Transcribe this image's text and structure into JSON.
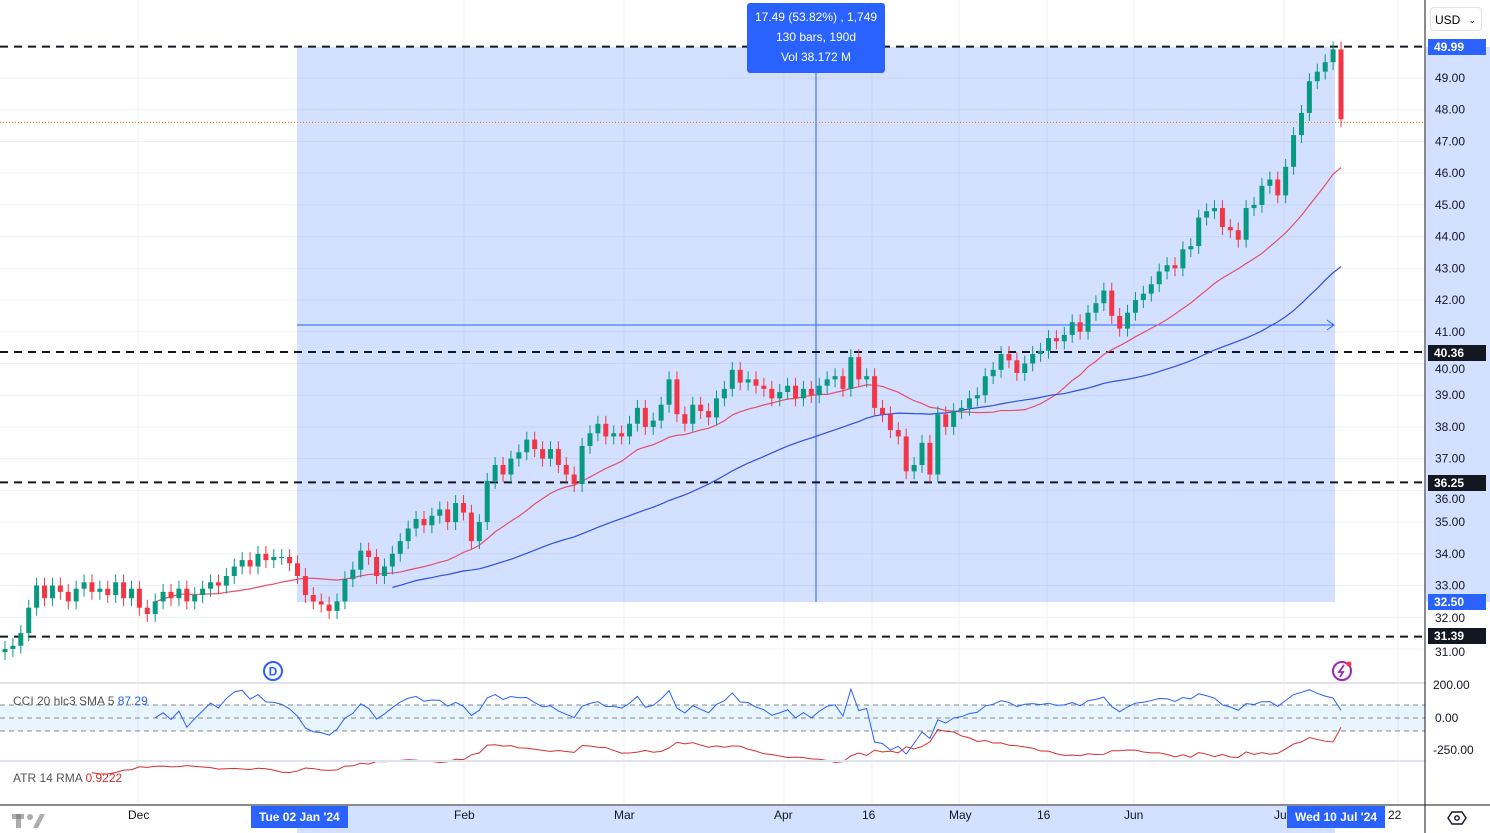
{
  "currency_select": {
    "value": "USD"
  },
  "measure_tooltip": {
    "line1": "17.49 (53.82%) , 1,749",
    "line2": "130 bars, 190d",
    "line3": "Vol 38.172 M"
  },
  "price_badges": {
    "top": "49.99",
    "mid": "40.36",
    "low": "36.25",
    "measure_low": "32.50",
    "bottom": "31.39"
  },
  "time_badges": {
    "start": "Tue 02 Jan '24",
    "end": "Wed 10 Jul '24"
  },
  "indicators": {
    "cci_label": "CCI 20 hlc3 SMA 5",
    "cci_value": "87.29",
    "atr_label": "ATR 14 RMA",
    "atr_value": "0.9222",
    "cci_ticks": [
      "200.00",
      "0.00",
      "-250.00"
    ]
  },
  "colors": {
    "up": "#089981",
    "down": "#f23645",
    "accent": "#2962ff",
    "ma_fast": "#e5506a",
    "ma_slow": "#2f4fe0",
    "cci": "#2962ff",
    "atr": "#d32f2f",
    "current_price_line": "#f57c00"
  },
  "icons": {
    "dividend": "D",
    "alert": "lightning-icon",
    "settings": "gear-icon"
  },
  "chart_data": {
    "type": "candlestick",
    "x_ticks": [
      "Dec",
      "Feb",
      "Mar",
      "Apr",
      "16",
      "May",
      "16",
      "Jun",
      "Ju",
      "22"
    ],
    "y_ticks": [
      31,
      32,
      33,
      34,
      35,
      36,
      37,
      38,
      39,
      40,
      41,
      42,
      43,
      44,
      45,
      46,
      47,
      48,
      49
    ],
    "ylim": [
      30.6,
      50.2
    ],
    "horizontal_levels": [
      49.99,
      40.36,
      36.25,
      31.39
    ],
    "current_price": 47.6,
    "measure": {
      "from_price": 32.5,
      "to_price": 49.99,
      "change": 17.49,
      "change_pct": 53.82,
      "bars": 130,
      "days": 190
    },
    "moving_averages": [
      20,
      50
    ],
    "closes": [
      31.0,
      31.1,
      31.5,
      32.3,
      33.0,
      32.6,
      33.0,
      32.8,
      32.5,
      32.9,
      33.1,
      32.8,
      32.9,
      32.7,
      33.1,
      32.6,
      32.9,
      32.3,
      32.1,
      32.5,
      32.8,
      32.6,
      32.9,
      32.5,
      32.7,
      32.9,
      33.1,
      33.0,
      33.3,
      33.6,
      33.8,
      33.6,
      34.0,
      33.8,
      33.9,
      33.9,
      33.7,
      33.3,
      32.7,
      32.5,
      32.4,
      32.2,
      32.5,
      33.2,
      33.5,
      34.1,
      33.9,
      33.3,
      33.6,
      34.0,
      34.4,
      34.8,
      35.1,
      34.9,
      35.2,
      35.4,
      35.0,
      35.6,
      35.3,
      34.4,
      35.0,
      36.3,
      36.8,
      36.5,
      37.0,
      37.2,
      37.6,
      37.3,
      37.0,
      37.3,
      36.8,
      36.5,
      36.2,
      37.4,
      37.8,
      38.1,
      37.7,
      37.8,
      37.7,
      38.1,
      38.6,
      38.0,
      38.2,
      38.7,
      39.5,
      38.4,
      38.1,
      38.7,
      38.5,
      38.3,
      38.9,
      39.2,
      39.8,
      39.4,
      39.5,
      39.3,
      39.2,
      38.9,
      39.1,
      39.3,
      38.9,
      39.2,
      39.0,
      39.3,
      39.5,
      39.6,
      39.2,
      40.2,
      39.5,
      39.6,
      38.6,
      38.4,
      37.9,
      37.7,
      36.6,
      36.8,
      37.5,
      36.5,
      38.4,
      38.0,
      38.5,
      38.6,
      38.9,
      39.0,
      39.6,
      39.8,
      40.3,
      40.1,
      39.7,
      40.0,
      40.3,
      40.4,
      40.8,
      40.7,
      40.9,
      41.3,
      41.0,
      41.6,
      41.9,
      42.3,
      41.5,
      41.1,
      41.6,
      42.0,
      42.2,
      42.5,
      42.9,
      43.1,
      43.0,
      43.6,
      43.7,
      44.6,
      44.8,
      44.9,
      44.3,
      44.2,
      43.9,
      44.9,
      45.0,
      45.6,
      45.8,
      45.3,
      46.2,
      47.2,
      47.9,
      48.9,
      49.2,
      49.5,
      49.9,
      47.7
    ]
  }
}
